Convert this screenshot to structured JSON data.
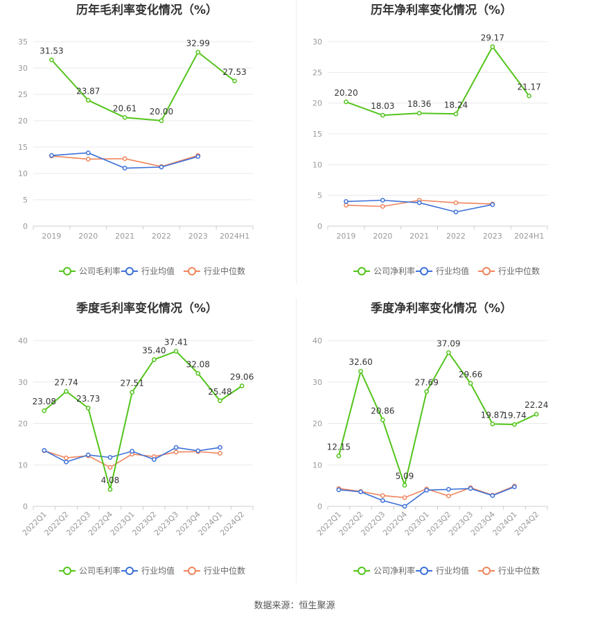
{
  "colors": {
    "company": "#52c41a",
    "industry_avg": "#3b6fd8",
    "industry_median": "#f0845c"
  },
  "chart_data": [
    {
      "type": "line",
      "title": "历年毛利率变化情况（%）",
      "categories": [
        "2019",
        "2020",
        "2021",
        "2022",
        "2023",
        "2024H1"
      ],
      "ylim": [
        0,
        35
      ],
      "yticks": [
        0,
        5,
        10,
        15,
        20,
        25,
        30,
        35
      ],
      "series": [
        {
          "name": "公司毛利率",
          "values": [
            31.53,
            23.87,
            20.61,
            20.0,
            32.99,
            27.53
          ],
          "labels": [
            "31.53",
            "23.87",
            "20.61",
            "20.00",
            "32.99",
            "27.53"
          ]
        },
        {
          "name": "行业均值",
          "values": [
            13.4,
            13.9,
            11.0,
            11.2,
            13.2,
            null
          ]
        },
        {
          "name": "行业中位数",
          "values": [
            13.3,
            12.7,
            12.8,
            11.3,
            13.4,
            null
          ]
        }
      ],
      "legend": "bottom"
    },
    {
      "type": "line",
      "title": "历年净利率变化情况（%）",
      "categories": [
        "2019",
        "2020",
        "2021",
        "2022",
        "2023",
        "2024H1"
      ],
      "ylim": [
        0,
        30
      ],
      "yticks": [
        0,
        5,
        10,
        15,
        20,
        25,
        30
      ],
      "series": [
        {
          "name": "公司净利率",
          "values": [
            20.2,
            18.03,
            18.36,
            18.24,
            29.17,
            21.17
          ],
          "labels": [
            "20.20",
            "18.03",
            "18.36",
            "18.24",
            "29.17",
            "21.17"
          ]
        },
        {
          "name": "行业均值",
          "values": [
            4.0,
            4.2,
            3.8,
            2.3,
            3.5,
            null
          ]
        },
        {
          "name": "行业中位数",
          "values": [
            3.4,
            3.2,
            4.2,
            3.8,
            3.6,
            null
          ]
        }
      ],
      "legend": "bottom"
    },
    {
      "type": "line",
      "title": "季度毛利率变化情况（%）",
      "categories": [
        "2022Q1",
        "2022Q2",
        "2022Q3",
        "2022Q4",
        "2023Q1",
        "2023Q2",
        "2023Q3",
        "2023Q4",
        "2024Q1",
        "2024Q2"
      ],
      "ylim": [
        0,
        40
      ],
      "yticks": [
        0,
        10,
        20,
        30,
        40
      ],
      "series": [
        {
          "name": "公司毛利率",
          "values": [
            23.08,
            27.74,
            23.73,
            4.08,
            27.51,
            35.4,
            37.41,
            32.08,
            25.48,
            29.06
          ],
          "labels": [
            "23.08",
            "27.74",
            "23.73",
            "4.08",
            "27.51",
            "35.40",
            "37.41",
            "32.08",
            "25.48",
            "29.06"
          ]
        },
        {
          "name": "行业均值",
          "values": [
            13.5,
            10.7,
            12.4,
            11.8,
            13.3,
            11.3,
            14.2,
            13.4,
            14.2,
            null
          ]
        },
        {
          "name": "行业中位数",
          "values": [
            13.4,
            11.7,
            12.2,
            9.4,
            12.6,
            12.0,
            13.1,
            13.2,
            12.8,
            null
          ]
        }
      ],
      "legend": "bottom"
    },
    {
      "type": "line",
      "title": "季度净利率变化情况（%）",
      "categories": [
        "2022Q1",
        "2022Q2",
        "2022Q3",
        "2022Q4",
        "2023Q1",
        "2023Q2",
        "2023Q3",
        "2023Q4",
        "2024Q1",
        "2024Q2"
      ],
      "ylim": [
        0,
        40
      ],
      "yticks": [
        0,
        10,
        20,
        30,
        40
      ],
      "series": [
        {
          "name": "公司净利率",
          "values": [
            12.15,
            32.6,
            20.86,
            5.09,
            27.69,
            37.09,
            29.66,
            19.87,
            19.74,
            22.24
          ],
          "labels": [
            "12.15",
            "32.60",
            "20.86",
            "5.09",
            "27.69",
            "37.09",
            "29.66",
            "19.87",
            "19.74",
            "22.24"
          ]
        },
        {
          "name": "行业均值",
          "values": [
            4.0,
            3.5,
            1.4,
            0.0,
            3.9,
            4.1,
            4.3,
            2.6,
            4.7,
            null
          ]
        },
        {
          "name": "行业中位数",
          "values": [
            4.3,
            3.6,
            2.6,
            2.1,
            4.2,
            2.5,
            4.5,
            2.7,
            4.9,
            null
          ]
        }
      ],
      "legend": "bottom"
    }
  ],
  "footer": "数据来源：恒生聚源"
}
